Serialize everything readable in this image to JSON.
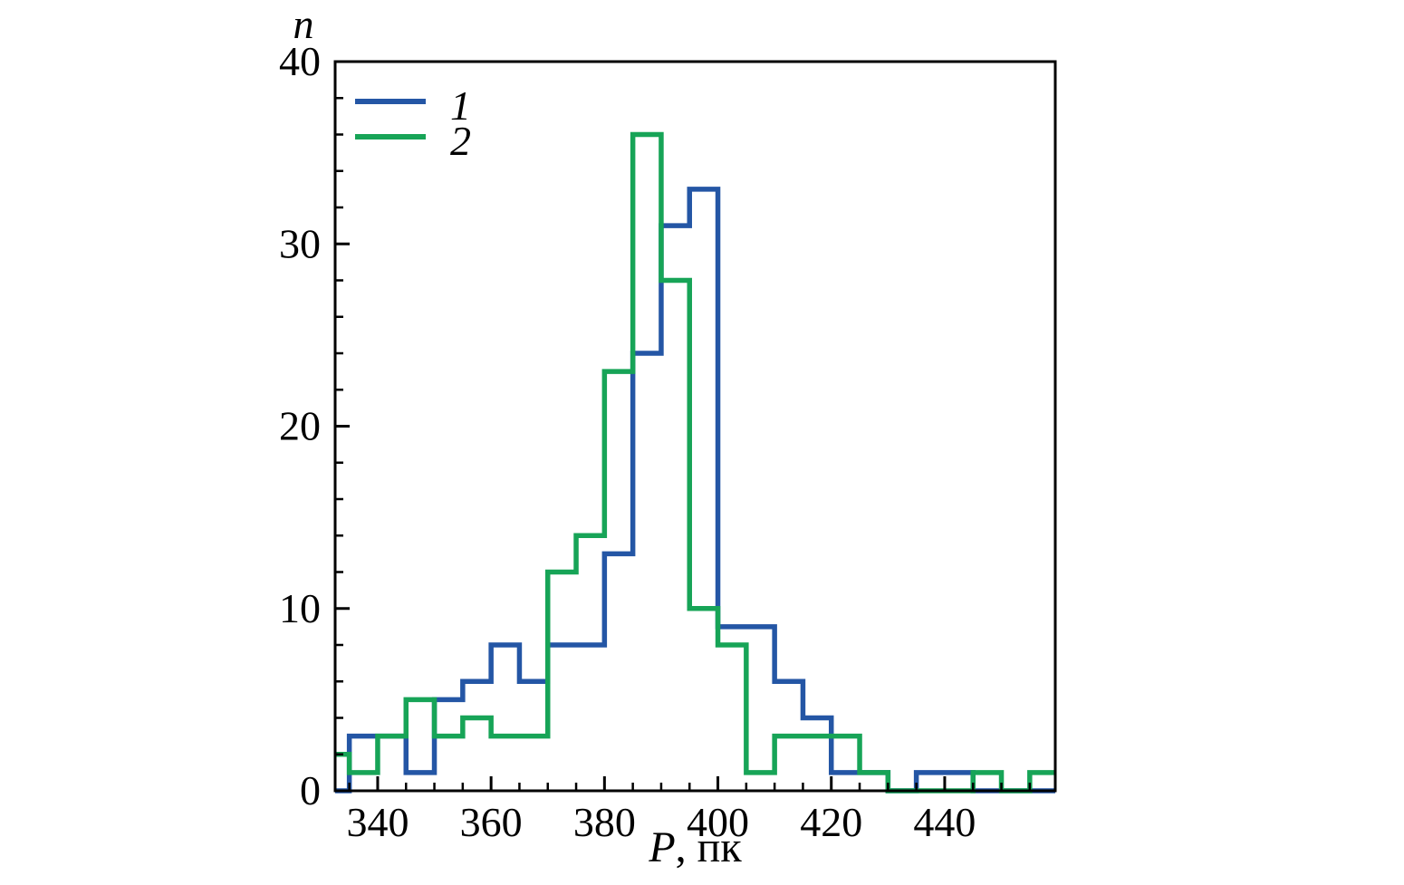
{
  "figure": {
    "background": "#ffffff",
    "axis_color": "#000000"
  },
  "chart_data": {
    "type": "histogram-step",
    "title": "",
    "ylabel": "n",
    "xlabel_prefix": "P",
    "xlabel_suffix": ", пк",
    "bin_start": 330,
    "bin_width": 5,
    "xlim": [
      332.5,
      459.5
    ],
    "ylim": [
      0,
      40
    ],
    "xticks": [
      340,
      360,
      380,
      400,
      420,
      440
    ],
    "yticks": [
      0,
      10,
      20,
      30,
      40
    ],
    "x_minor_step": 5,
    "y_minor_step": 2,
    "grid": false,
    "legend_position": "top-left",
    "series": [
      {
        "name": "1",
        "color": "#2456a5",
        "values": [
          0,
          3,
          3,
          1,
          5,
          6,
          8,
          6,
          8,
          8,
          13,
          24,
          31,
          33,
          9,
          9,
          6,
          4,
          1,
          1,
          0,
          1,
          1,
          0,
          0,
          0
        ]
      },
      {
        "name": "2",
        "color": "#17a457",
        "values": [
          2,
          1,
          3,
          5,
          3,
          4,
          3,
          3,
          12,
          14,
          23,
          36,
          28,
          10,
          8,
          1,
          3,
          3,
          3,
          1,
          0,
          0,
          0,
          1,
          0,
          1
        ]
      }
    ]
  }
}
